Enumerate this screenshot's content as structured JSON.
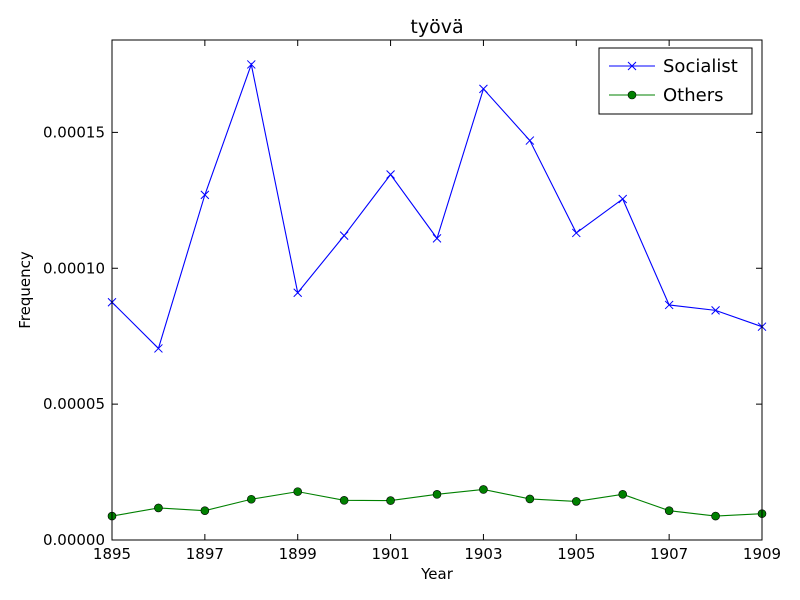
{
  "chart_data": {
    "type": "line",
    "title": "työvä",
    "xlabel": "Year",
    "ylabel": "Frequency",
    "xlim": [
      1895,
      1909
    ],
    "ylim": [
      0,
      0.000184
    ],
    "xticks": [
      "1895",
      "1897",
      "1899",
      "1901",
      "1903",
      "1905",
      "1907",
      "1909"
    ],
    "xtick_values": [
      1895,
      1897,
      1899,
      1901,
      1903,
      1905,
      1907,
      1909
    ],
    "yticks": [
      "0.00000",
      "0.00005",
      "0.00010",
      "0.00015"
    ],
    "ytick_values": [
      0,
      5e-05,
      0.0001,
      0.00015
    ],
    "legend_position": "top-right",
    "grid": false,
    "x": [
      1895,
      1896,
      1897,
      1898,
      1899,
      1900,
      1901,
      1902,
      1903,
      1904,
      1905,
      1906,
      1907,
      1908,
      1909
    ],
    "series": [
      {
        "name": "Socialist",
        "color": "#0000ff",
        "marker": "x",
        "values": [
          8.75e-05,
          7.05e-05,
          0.000127,
          0.000175,
          9.1e-05,
          0.000112,
          0.0001345,
          0.000111,
          0.000166,
          0.000147,
          0.000113,
          0.0001255,
          8.65e-05,
          8.45e-05,
          7.85e-05
        ]
      },
      {
        "name": "Others",
        "color": "#008000",
        "marker": "o",
        "values": [
          8.8e-06,
          1.18e-05,
          1.08e-05,
          1.5e-05,
          1.78e-05,
          1.46e-05,
          1.45e-05,
          1.68e-05,
          1.86e-05,
          1.51e-05,
          1.42e-05,
          1.68e-05,
          1.08e-05,
          8.8e-06,
          9.7e-06
        ]
      }
    ]
  }
}
